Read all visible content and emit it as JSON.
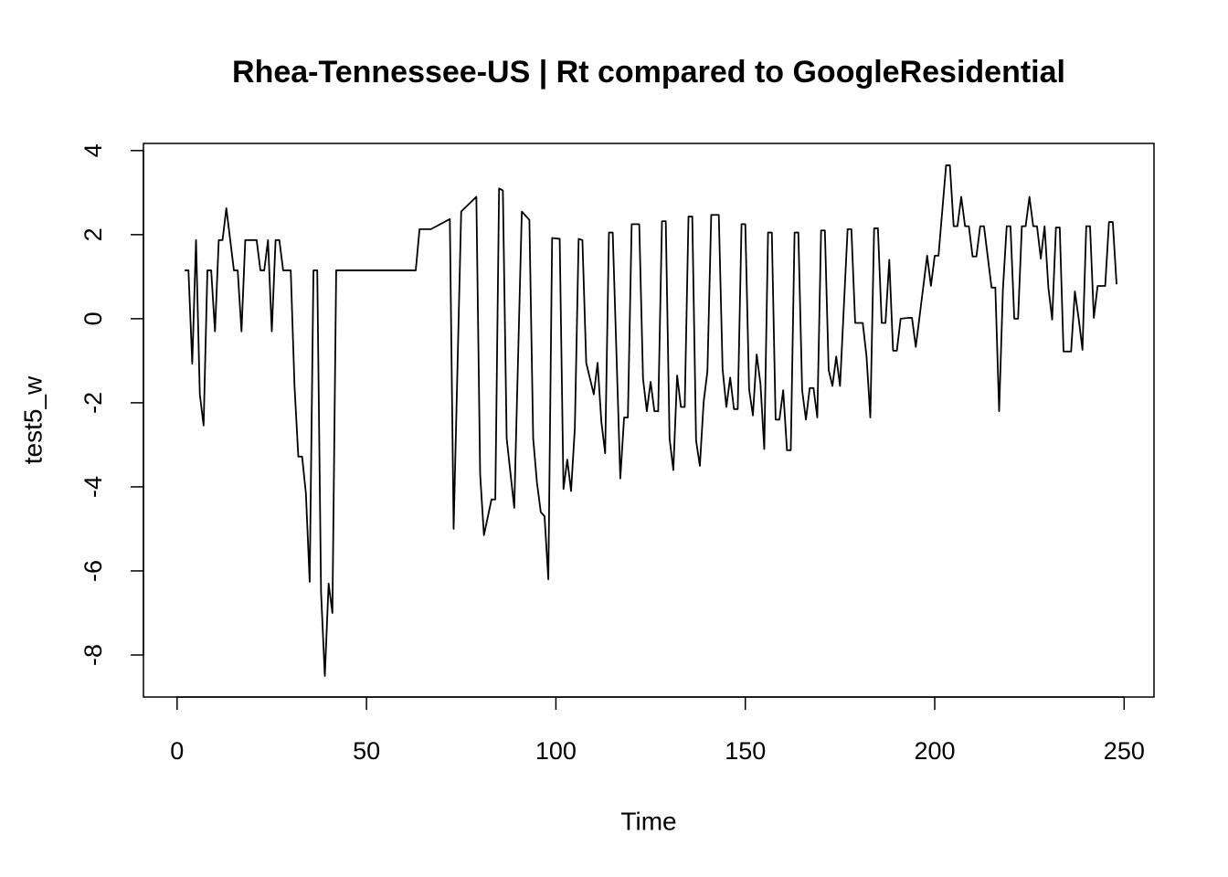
{
  "chart_data": {
    "type": "line",
    "title": "Rhea-Tennessee-US | Rt compared to GoogleResidential",
    "x_label": "Time",
    "y_label": "test5_w",
    "color": "#000000",
    "x": [
      2,
      3,
      4,
      5,
      6,
      7,
      8,
      9,
      10,
      11,
      12,
      13,
      15,
      16,
      17,
      18,
      21,
      22,
      23,
      24,
      25,
      26,
      27,
      28,
      30,
      31,
      32,
      33,
      34,
      35,
      36,
      37,
      38,
      39,
      40,
      41,
      42,
      63,
      64,
      67,
      72,
      73,
      75,
      79,
      80,
      81,
      83,
      84,
      85,
      86,
      87,
      89,
      91,
      93,
      94,
      95,
      96,
      97,
      98,
      99,
      101,
      102,
      103,
      104,
      105,
      106,
      107,
      108,
      110,
      111,
      112,
      113,
      114,
      115,
      117,
      118,
      119,
      120,
      122,
      123,
      124,
      125,
      126,
      127,
      128,
      129,
      130,
      131,
      132,
      133,
      134,
      135,
      136,
      137,
      138,
      139,
      140,
      141,
      143,
      144,
      145,
      146,
      147,
      148,
      149,
      150,
      151,
      152,
      153,
      154,
      155,
      156,
      157,
      158,
      159,
      160,
      161,
      162,
      163,
      164,
      165,
      166,
      167,
      168,
      169,
      170,
      171,
      172,
      173,
      174,
      175,
      177,
      178,
      179,
      181,
      182,
      183,
      184,
      185,
      186,
      187,
      188,
      189,
      190,
      191,
      193,
      194,
      195,
      198,
      199,
      200,
      201,
      203,
      204,
      205,
      206,
      207,
      208,
      209,
      210,
      211,
      212,
      213,
      215,
      216,
      217,
      218,
      219,
      220,
      221,
      222,
      223,
      224,
      225,
      226,
      227,
      228,
      229,
      230,
      231,
      232,
      233,
      234,
      236,
      237,
      238,
      239,
      240,
      241,
      242,
      243,
      245,
      246,
      247,
      248
    ],
    "values": [
      1.15,
      1.15,
      -1.07,
      1.87,
      -1.8,
      -2.54,
      1.15,
      1.15,
      -0.3,
      1.87,
      1.87,
      2.63,
      1.15,
      1.15,
      -0.3,
      1.87,
      1.87,
      1.15,
      1.15,
      1.87,
      -0.3,
      1.87,
      1.87,
      1.15,
      1.15,
      -1.6,
      -3.28,
      -3.28,
      -4.15,
      -6.26,
      1.15,
      1.15,
      -6.5,
      -8.5,
      -6.3,
      -7.0,
      1.15,
      1.15,
      2.13,
      2.13,
      2.37,
      -5.0,
      2.55,
      2.9,
      -3.7,
      -5.15,
      -4.3,
      -4.3,
      3.1,
      3.05,
      -2.85,
      -4.5,
      2.55,
      2.35,
      -2.85,
      -3.9,
      -4.6,
      -4.7,
      -6.2,
      1.92,
      1.9,
      -4.05,
      -3.35,
      -4.1,
      -2.6,
      1.9,
      1.87,
      -1.05,
      -1.8,
      -1.05,
      -2.45,
      -3.2,
      2.05,
      2.05,
      -3.8,
      -2.35,
      -2.35,
      2.25,
      2.25,
      -1.43,
      -2.2,
      -1.5,
      -2.2,
      -2.2,
      2.32,
      2.32,
      -2.85,
      -3.6,
      -1.35,
      -2.1,
      -2.1,
      2.43,
      2.43,
      -2.9,
      -3.5,
      -1.98,
      -1.25,
      2.47,
      2.47,
      -1.2,
      -2.1,
      -1.4,
      -2.15,
      -2.15,
      2.25,
      2.25,
      -1.68,
      -2.3,
      -0.85,
      -1.55,
      -3.1,
      2.05,
      2.05,
      -2.4,
      -2.4,
      -1.7,
      -3.13,
      -3.13,
      2.05,
      2.05,
      -1.7,
      -2.4,
      -1.65,
      -1.65,
      -2.35,
      2.1,
      2.1,
      -1.22,
      -1.6,
      -0.9,
      -1.6,
      2.13,
      2.13,
      -0.1,
      -0.1,
      -0.9,
      -2.35,
      2.15,
      2.15,
      -0.1,
      -0.1,
      1.4,
      -0.76,
      -0.76,
      0,
      0.02,
      0.02,
      -0.67,
      1.5,
      0.78,
      1.5,
      1.5,
      3.65,
      3.65,
      2.2,
      2.2,
      2.9,
      2.2,
      2.2,
      1.48,
      1.48,
      2.2,
      2.2,
      0.74,
      0.74,
      -2.2,
      0.7,
      2.2,
      2.2,
      0,
      0,
      2.2,
      2.2,
      2.9,
      2.2,
      2.2,
      1.43,
      2.2,
      0.74,
      -0.02,
      2.17,
      2.17,
      -0.78,
      -0.78,
      0.65,
      0,
      -0.74,
      2.2,
      2.2,
      0.02,
      0.78,
      0.78,
      2.3,
      2.3,
      0.82
    ],
    "xlim": [
      -8.88,
      257.88
    ],
    "ylim": [
      -9.0,
      4.17
    ],
    "xticks": [
      0,
      50,
      100,
      150,
      200,
      250
    ],
    "yticks": [
      -8,
      -6,
      -4,
      -2,
      0,
      2,
      4
    ]
  }
}
